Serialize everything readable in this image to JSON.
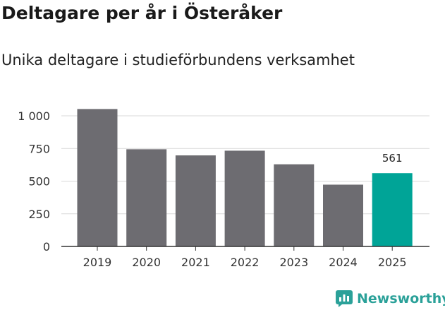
{
  "chart_data": {
    "type": "bar",
    "title": "Deltagare per år i Österåker",
    "subtitle": "Unika deltagare i studieförbundens verksamhet",
    "categories": [
      "2019",
      "2020",
      "2021",
      "2022",
      "2023",
      "2024",
      "2025"
    ],
    "values": [
      1052,
      744,
      697,
      733,
      629,
      473,
      561
    ],
    "highlight_index": 6,
    "data_labels": [
      {
        "category": "2025",
        "text": "561"
      }
    ],
    "y_ticks": [
      {
        "value": 0,
        "label": "0"
      },
      {
        "value": 250,
        "label": "250"
      },
      {
        "value": 500,
        "label": "500"
      },
      {
        "value": 750,
        "label": "750"
      },
      {
        "value": 1000,
        "label": "1 000"
      }
    ],
    "ylim": [
      0,
      1000
    ],
    "grid": true,
    "xlabel": "",
    "ylabel": "",
    "colors": {
      "bar": "#6d6c71",
      "highlight": "#00a497",
      "grid": "#d9d9d9",
      "axis": "#333333"
    }
  },
  "branding": {
    "name": "Newsworthy",
    "icon": "newsworthy-logo-icon",
    "color": "#2ba199"
  }
}
